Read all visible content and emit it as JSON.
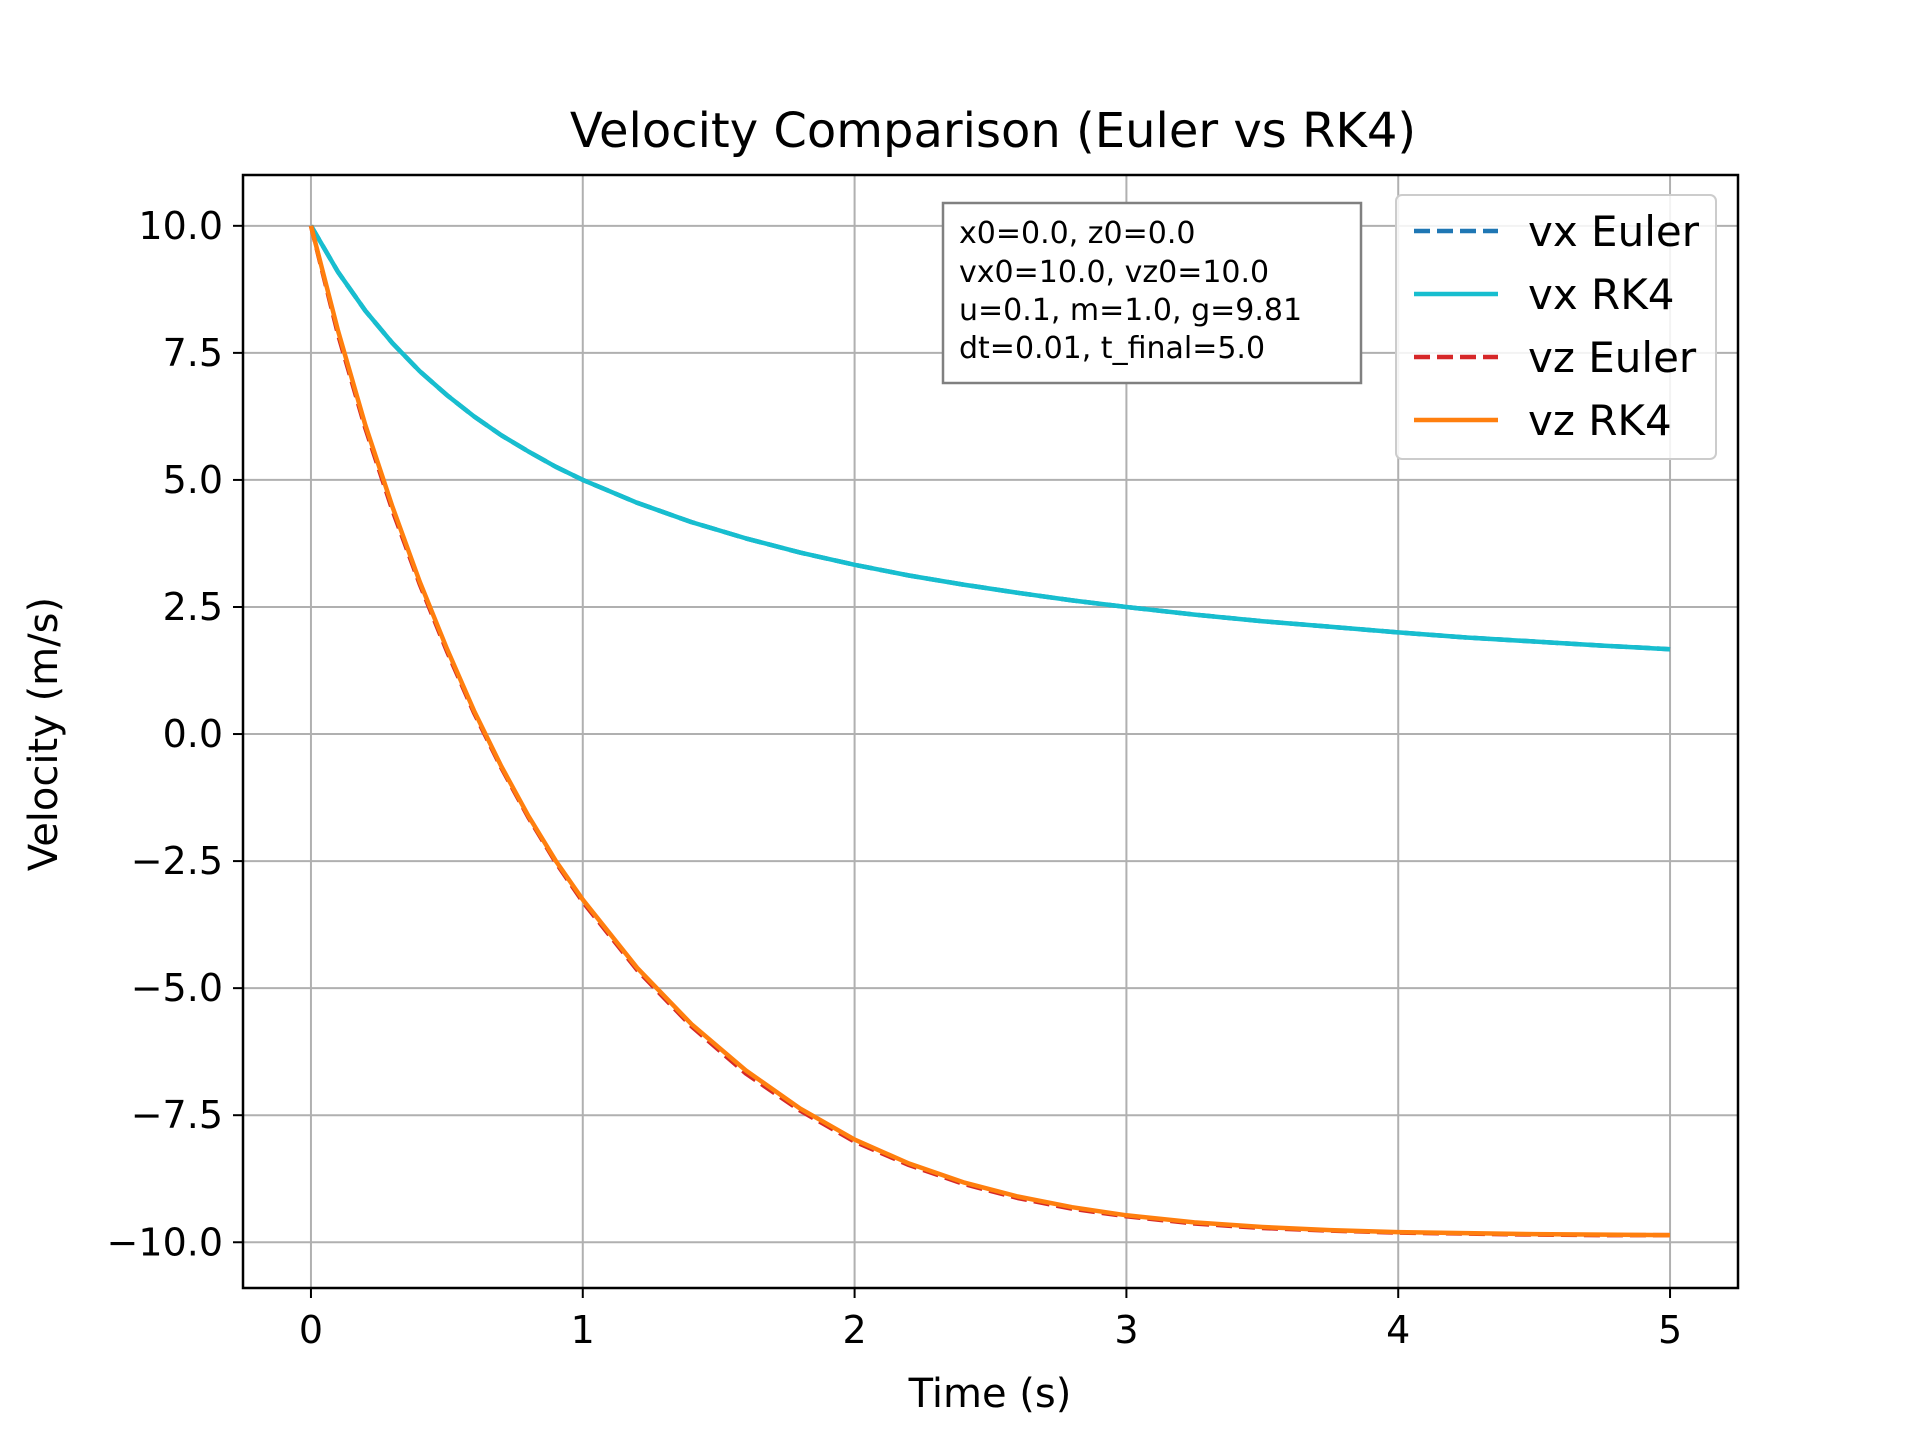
{
  "chart_data": {
    "type": "line",
    "title": "Velocity Comparison (Euler vs RK4)",
    "xlabel": "Time (s)",
    "ylabel": "Velocity (m/s)",
    "xlim": [
      -0.25,
      5.25
    ],
    "ylim": [
      -10.9,
      11.0
    ],
    "xticks": [
      0,
      1,
      2,
      3,
      4,
      5
    ],
    "xtick_labels": [
      "0",
      "1",
      "2",
      "3",
      "4",
      "5"
    ],
    "yticks": [
      10.0,
      7.5,
      5.0,
      2.5,
      0.0,
      -2.5,
      -5.0,
      -7.5,
      -10.0
    ],
    "ytick_labels": [
      "10.0",
      "7.5",
      "5.0",
      "2.5",
      "0.0",
      "−2.5",
      "−5.0",
      "−7.5",
      "−10.0"
    ],
    "grid": true,
    "legend_position": "top-right",
    "annotation": [
      "x0=0.0, z0=0.0",
      "vx0=10.0, vz0=10.0",
      "u=0.1, m=1.0, g=9.81",
      "dt=0.01, t_final=5.0"
    ],
    "x": [
      0.0,
      0.1,
      0.2,
      0.3,
      0.4,
      0.5,
      0.6,
      0.7,
      0.8,
      0.9,
      1.0,
      1.2,
      1.4,
      1.6,
      1.8,
      2.0,
      2.2,
      2.4,
      2.6,
      2.8,
      3.0,
      3.25,
      3.5,
      3.75,
      4.0,
      4.25,
      4.5,
      4.75,
      5.0
    ],
    "series": [
      {
        "name": "vx Euler",
        "color": "#1f77b4",
        "style": "dashed",
        "values": [
          10.0,
          9.09,
          8.33,
          7.69,
          7.14,
          6.67,
          6.25,
          5.88,
          5.56,
          5.26,
          5.0,
          4.55,
          4.17,
          3.85,
          3.57,
          3.33,
          3.12,
          2.94,
          2.78,
          2.63,
          2.5,
          2.35,
          2.22,
          2.11,
          2.0,
          1.9,
          1.82,
          1.74,
          1.67
        ]
      },
      {
        "name": "vx RK4",
        "color": "#17becf",
        "style": "solid",
        "values": [
          10.0,
          9.09,
          8.33,
          7.69,
          7.14,
          6.67,
          6.25,
          5.88,
          5.56,
          5.26,
          5.0,
          4.55,
          4.17,
          3.85,
          3.57,
          3.33,
          3.12,
          2.94,
          2.78,
          2.63,
          2.5,
          2.35,
          2.22,
          2.11,
          2.0,
          1.9,
          1.82,
          1.74,
          1.67
        ]
      },
      {
        "name": "vz Euler",
        "color": "#d62728",
        "style": "dashed",
        "values": [
          10.0,
          7.86,
          6.02,
          4.4,
          2.95,
          1.63,
          0.42,
          -0.66,
          -1.64,
          -2.52,
          -3.3,
          -4.64,
          -5.75,
          -6.68,
          -7.41,
          -8.02,
          -8.48,
          -8.85,
          -9.13,
          -9.34,
          -9.49,
          -9.63,
          -9.72,
          -9.77,
          -9.81,
          -9.83,
          -9.85,
          -9.86,
          -9.86
        ]
      },
      {
        "name": "vz RK4",
        "color": "#ff7f0e",
        "style": "solid",
        "values": [
          10.0,
          7.93,
          6.08,
          4.47,
          3.0,
          1.68,
          0.46,
          -0.63,
          -1.61,
          -2.49,
          -3.26,
          -4.6,
          -5.71,
          -6.62,
          -7.37,
          -7.98,
          -8.45,
          -8.82,
          -9.1,
          -9.31,
          -9.47,
          -9.61,
          -9.7,
          -9.76,
          -9.8,
          -9.82,
          -9.84,
          -9.85,
          -9.86
        ]
      }
    ]
  }
}
